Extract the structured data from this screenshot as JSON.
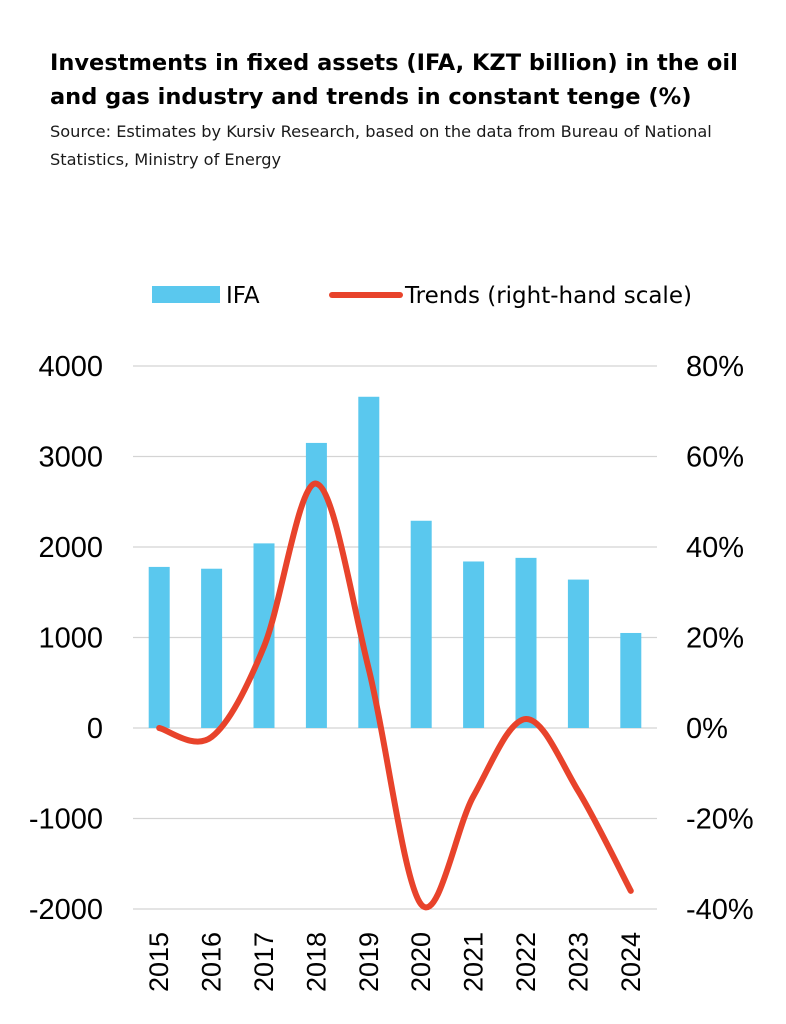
{
  "title": "Investments in fixed assets (IFA, KZT billion) in the oil and gas industry and trends in constant tenge (%)",
  "subtitle": "Source: Estimates by Kursiv Research, based on the data from Bureau of National Statistics, Ministry of Energy",
  "colors": {
    "bar": "#5ac8ee",
    "line": "#e8432b",
    "grid": "#d4d4d4"
  },
  "chart_data": {
    "type": "bar",
    "categories": [
      "2015",
      "2016",
      "2017",
      "2018",
      "2019",
      "2020",
      "2021",
      "2022",
      "2023",
      "2024"
    ],
    "series": [
      {
        "name": "IFA",
        "type": "bar",
        "axis": "left",
        "values": [
          1780,
          1760,
          2040,
          3150,
          3660,
          2290,
          1840,
          1880,
          1640,
          1050
        ]
      },
      {
        "name": "Trends (right-hand scale)",
        "type": "line",
        "axis": "right",
        "values": [
          0,
          -2,
          18,
          54,
          13,
          -39,
          -15,
          2,
          -14,
          -36
        ]
      }
    ],
    "legend": {
      "position": "top",
      "items": [
        "IFA",
        "Trends (right-hand scale)"
      ]
    },
    "y_left": {
      "min": -2000,
      "max": 4000,
      "ticks": [
        4000,
        3000,
        2000,
        1000,
        0,
        -1000,
        -2000
      ]
    },
    "y_right": {
      "min": -40,
      "max": 80,
      "ticks": [
        "80%",
        "60%",
        "40%",
        "20%",
        "0%",
        "-20%",
        "-40%"
      ]
    },
    "grid": true
  }
}
